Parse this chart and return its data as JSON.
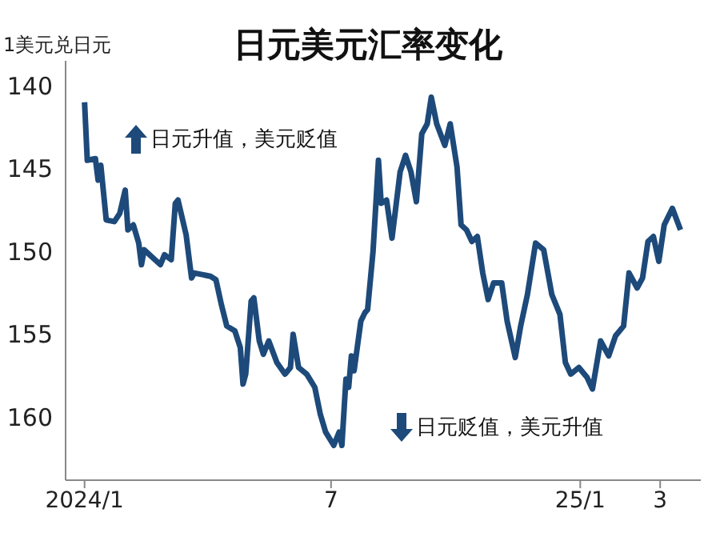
{
  "chart_data": {
    "type": "line",
    "title": "日元美元汇率变化",
    "ylabel": "1美元兑日元",
    "annotations": [
      "日元升值，美元贬值",
      "日元贬值，美元升值"
    ],
    "x": [
      "2024-01-01",
      "2024-01-03",
      "2024-01-09",
      "2024-01-11",
      "2024-01-13",
      "2024-01-17",
      "2024-01-23",
      "2024-01-27",
      "2024-01-31",
      "2024-02-02",
      "2024-02-06",
      "2024-02-10",
      "2024-02-12",
      "2024-02-14",
      "2024-02-26",
      "2024-02-29",
      "2024-03-05",
      "2024-03-08",
      "2024-03-10",
      "2024-03-16",
      "2024-03-20",
      "2024-03-22",
      "2024-04-03",
      "2024-04-07",
      "2024-04-11",
      "2024-04-15",
      "2024-04-21",
      "2024-04-25",
      "2024-04-27",
      "2024-04-29",
      "2024-05-03",
      "2024-05-05",
      "2024-05-09",
      "2024-05-12",
      "2024-05-16",
      "2024-05-22",
      "2024-05-28",
      "2024-06-01",
      "2024-06-03",
      "2024-06-07",
      "2024-06-13",
      "2024-06-19",
      "2024-06-23",
      "2024-06-27",
      "2024-07-03",
      "2024-07-07",
      "2024-07-09",
      "2024-07-12",
      "2024-07-14",
      "2024-07-16",
      "2024-07-18",
      "2024-07-23",
      "2024-07-26",
      "2024-07-28",
      "2024-08-01",
      "2024-08-05",
      "2024-08-07",
      "2024-08-11",
      "2024-08-15",
      "2024-08-21",
      "2024-08-25",
      "2024-08-29",
      "2024-09-02",
      "2024-09-06",
      "2024-09-10",
      "2024-09-13",
      "2024-09-17",
      "2024-09-23",
      "2024-09-27",
      "2024-10-02",
      "2024-10-05",
      "2024-10-09",
      "2024-10-13",
      "2024-10-17",
      "2024-10-21",
      "2024-10-25",
      "2024-10-29",
      "2024-11-04",
      "2024-11-08",
      "2024-11-14",
      "2024-11-18",
      "2024-11-23",
      "2024-11-29",
      "2024-12-05",
      "2024-12-11",
      "2024-12-17",
      "2024-12-21",
      "2024-12-25",
      "2024-12-31",
      "2025-01-06",
      "2025-01-10",
      "2025-01-16",
      "2025-01-22",
      "2025-01-27",
      "2025-02-02",
      "2025-02-06",
      "2025-02-12",
      "2025-02-16",
      "2025-02-20",
      "2025-02-24",
      "2025-02-28",
      "2025-03-04",
      "2025-03-10",
      "2025-03-16"
    ],
    "series": [
      {
        "color": "#1d4a7a",
        "values": [
          141,
          144.5,
          144.4,
          145.7,
          144.8,
          148.1,
          148.2,
          147.7,
          146.3,
          148.7,
          148.4,
          149.5,
          150.8,
          149.9,
          150.8,
          150.2,
          150.5,
          147.1,
          146.9,
          149,
          151.6,
          151.3,
          151.5,
          151.7,
          153.2,
          154.5,
          154.8,
          155.8,
          158,
          157.4,
          153,
          152.8,
          155.4,
          156.2,
          155.4,
          156.7,
          157.4,
          157,
          155,
          157,
          157.4,
          158.2,
          159.8,
          160.9,
          161.7,
          160.9,
          161.7,
          157.7,
          158.2,
          156.3,
          157.2,
          154.2,
          153.7,
          153.5,
          150,
          144.5,
          147.1,
          146.9,
          149.2,
          145.2,
          144.2,
          145.2,
          147,
          142.9,
          142.3,
          140.7,
          142.3,
          143.6,
          142.3,
          144.9,
          148.4,
          148.7,
          149.4,
          149.1,
          151.3,
          152.9,
          151.9,
          151.9,
          154.2,
          156.4,
          154.5,
          152.6,
          149.5,
          149.9,
          152.6,
          153.8,
          156.7,
          157.4,
          157,
          157.6,
          158.3,
          155.4,
          156.3,
          155.1,
          154.5,
          151.3,
          152.2,
          151.6,
          149.4,
          149.1,
          150.6,
          148.4,
          147.4,
          148.7
        ]
      }
    ],
    "xlim": [
      "2023-12-18",
      "2025-03-31"
    ],
    "xticks": [
      {
        "value": "2024-01-01",
        "label": "2024/1"
      },
      {
        "value": "2024-07-01",
        "label": "7"
      },
      {
        "value": "2025-01-01",
        "label": "25/1"
      },
      {
        "value": "2025-03-01",
        "label": "3"
      }
    ],
    "ylim": [
      163.8,
      138.5
    ],
    "yticks": [
      140,
      145,
      150,
      155,
      160
    ],
    "grid": false,
    "legend": false,
    "marker": "none",
    "line_style": "solid"
  }
}
